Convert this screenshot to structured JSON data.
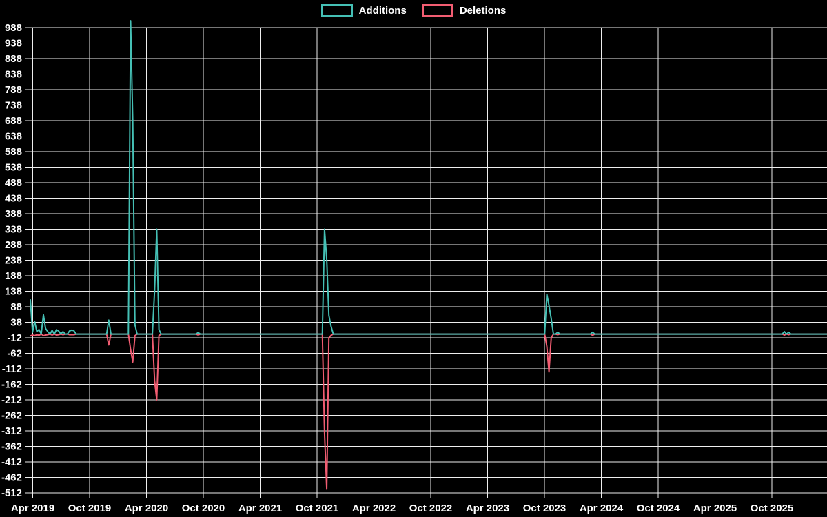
{
  "window": {
    "background_color": "#000000"
  },
  "legend": {
    "items": [
      {
        "label": "Additions",
        "color": "#45c0b5"
      },
      {
        "label": "Deletions",
        "color": "#f25d72"
      }
    ]
  },
  "chart_data": {
    "type": "line",
    "title": "",
    "xlabel": "",
    "ylabel": "",
    "legend_position": "top-center",
    "grid": true,
    "background_color": "#000000",
    "grid_color": "#ededed",
    "text_color": "#ffffff",
    "x_tick_labels": [
      "Apr 2019",
      "Oct 2019",
      "Apr 2020",
      "Oct 2020",
      "Apr 2021",
      "Oct 2021",
      "Apr 2022",
      "Oct 2022",
      "Apr 2023",
      "Oct 2023",
      "Apr 2024",
      "Oct 2024",
      "Apr 2025",
      "Oct 2025"
    ],
    "y_tick_values": [
      988,
      938,
      888,
      838,
      788,
      738,
      688,
      638,
      588,
      538,
      488,
      438,
      388,
      338,
      288,
      238,
      188,
      138,
      88,
      38,
      -12,
      -62,
      -112,
      -162,
      -212,
      -262,
      -312,
      -362,
      -412,
      -462,
      -512
    ],
    "ylim": [
      -512,
      988
    ],
    "x_start_date": "2019-03-31",
    "interval": "weekly",
    "default_week_value": 0,
    "series": [
      {
        "name": "Additions",
        "color": "#45c0b5"
      },
      {
        "name": "Deletions",
        "color": "#f25d72"
      }
    ],
    "weekly_points": [
      {
        "date": "2019-03-31",
        "additions": 112,
        "deletions": -6
      },
      {
        "date": "2019-04-07",
        "additions": 6,
        "deletions": -3
      },
      {
        "date": "2019-04-14",
        "additions": 40,
        "deletions": -5
      },
      {
        "date": "2019-04-21",
        "additions": 8,
        "deletions": -2
      },
      {
        "date": "2019-04-28",
        "additions": 15,
        "deletions": -4
      },
      {
        "date": "2019-05-12",
        "additions": 62,
        "deletions": -5
      },
      {
        "date": "2019-05-19",
        "additions": 18,
        "deletions": -3
      },
      {
        "date": "2019-05-26",
        "additions": 8,
        "deletions": -2
      },
      {
        "date": "2019-06-09",
        "additions": 12,
        "deletions": -3
      },
      {
        "date": "2019-06-23",
        "additions": 14,
        "deletions": -3
      },
      {
        "date": "2019-06-30",
        "additions": 10,
        "deletions": -2
      },
      {
        "date": "2019-07-14",
        "additions": 8,
        "deletions": -2
      },
      {
        "date": "2019-08-04",
        "additions": 10,
        "deletions": -2
      },
      {
        "date": "2019-08-11",
        "additions": 13,
        "deletions": -2
      },
      {
        "date": "2019-08-18",
        "additions": 11,
        "deletions": -2
      },
      {
        "date": "2019-12-08",
        "additions": 45,
        "deletions": -35
      },
      {
        "date": "2020-02-16",
        "additions": 1010,
        "deletions": -50
      },
      {
        "date": "2020-02-23",
        "additions": 690,
        "deletions": -90
      },
      {
        "date": "2020-03-01",
        "additions": 30,
        "deletions": -5
      },
      {
        "date": "2020-05-03",
        "additions": 140,
        "deletions": -150
      },
      {
        "date": "2020-05-10",
        "additions": 338,
        "deletions": -212
      },
      {
        "date": "2020-05-17",
        "additions": 15,
        "deletions": -5
      },
      {
        "date": "2020-09-20",
        "additions": 5,
        "deletions": -3
      },
      {
        "date": "2021-10-31",
        "additions": 338,
        "deletions": -320
      },
      {
        "date": "2021-11-07",
        "additions": 240,
        "deletions": -500
      },
      {
        "date": "2021-11-14",
        "additions": 60,
        "deletions": -12
      },
      {
        "date": "2021-11-21",
        "additions": 25,
        "deletions": -4
      },
      {
        "date": "2023-10-15",
        "additions": 128,
        "deletions": -40
      },
      {
        "date": "2023-10-22",
        "additions": 92,
        "deletions": -122
      },
      {
        "date": "2023-10-29",
        "additions": 50,
        "deletions": -12
      },
      {
        "date": "2023-11-19",
        "additions": 6,
        "deletions": -2
      },
      {
        "date": "2024-03-10",
        "additions": 6,
        "deletions": -4
      },
      {
        "date": "2025-11-16",
        "additions": 8,
        "deletions": -3
      },
      {
        "date": "2025-11-30",
        "additions": 6,
        "deletions": -2
      }
    ]
  }
}
